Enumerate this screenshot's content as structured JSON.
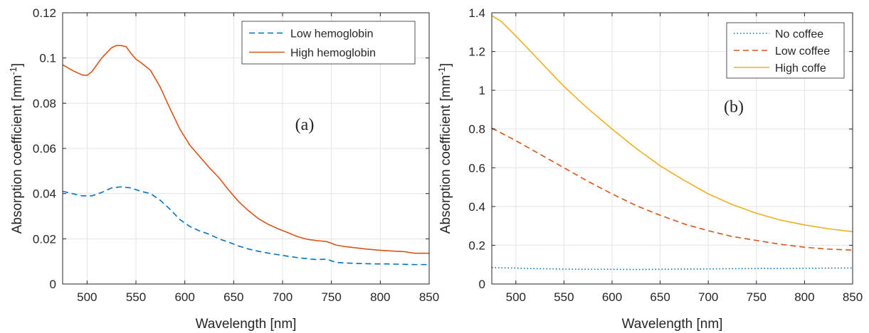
{
  "colors": {
    "blue": "#0072BD",
    "orange": "#D95319",
    "yellow": "#EDB120",
    "grid": "#e3e3e3",
    "axis": "#262626"
  },
  "chart_data": [
    {
      "type": "line",
      "panel_label": "(a)",
      "xlabel": "Wavelength [nm]",
      "ylabel": "Absorption coefficient [mm",
      "ylabel_sup": "-1",
      "ylabel_suffix": "]",
      "xlim": [
        475,
        850
      ],
      "ylim": [
        0,
        0.12
      ],
      "xticks": [
        500,
        550,
        600,
        650,
        700,
        750,
        800,
        850
      ],
      "yticks": [
        0,
        0.02,
        0.04,
        0.06,
        0.08,
        0.1,
        0.12
      ],
      "grid": true,
      "legend_position": "top-right",
      "series": [
        {
          "name": "Low hemoglobin",
          "color": "#0072BD",
          "style": "dashed",
          "x": [
            475,
            485,
            495,
            505,
            515,
            525,
            535,
            545,
            555,
            565,
            575,
            585,
            595,
            605,
            615,
            625,
            635,
            645,
            655,
            665,
            675,
            685,
            695,
            705,
            715,
            725,
            735,
            745,
            755,
            765,
            775,
            785,
            795,
            805,
            815,
            825,
            835,
            850
          ],
          "y": [
            0.041,
            0.04,
            0.039,
            0.039,
            0.0405,
            0.0425,
            0.043,
            0.0425,
            0.041,
            0.04,
            0.037,
            0.033,
            0.0285,
            0.0255,
            0.0235,
            0.022,
            0.02,
            0.0185,
            0.0168,
            0.0155,
            0.0145,
            0.0137,
            0.013,
            0.0123,
            0.0117,
            0.0112,
            0.0108,
            0.011,
            0.0095,
            0.0093,
            0.0091,
            0.009,
            0.0089,
            0.0089,
            0.0088,
            0.0087,
            0.0086,
            0.0086
          ]
        },
        {
          "name": "High hemoglobin",
          "color": "#D95319",
          "style": "solid",
          "x": [
            475,
            485,
            495,
            500,
            505,
            515,
            525,
            530,
            535,
            540,
            545,
            550,
            555,
            565,
            575,
            585,
            595,
            605,
            615,
            625,
            635,
            645,
            655,
            665,
            675,
            685,
            695,
            705,
            715,
            725,
            735,
            745,
            755,
            765,
            775,
            785,
            795,
            805,
            815,
            825,
            835,
            850
          ],
          "y": [
            0.097,
            0.0945,
            0.0925,
            0.0923,
            0.094,
            0.1,
            0.1045,
            0.1055,
            0.1055,
            0.105,
            0.102,
            0.0995,
            0.098,
            0.0945,
            0.087,
            0.0775,
            0.0685,
            0.0615,
            0.0565,
            0.0515,
            0.047,
            0.0415,
            0.0365,
            0.0325,
            0.029,
            0.0265,
            0.0245,
            0.0228,
            0.021,
            0.0198,
            0.0192,
            0.0188,
            0.0172,
            0.0165,
            0.016,
            0.0155,
            0.0151,
            0.0148,
            0.0145,
            0.0143,
            0.0136,
            0.0136
          ]
        }
      ]
    },
    {
      "type": "line",
      "panel_label": "(b)",
      "xlabel": "Wavelength [nm]",
      "ylabel": "Absorption coefficient [mm",
      "ylabel_sup": "-1",
      "ylabel_suffix": "]",
      "xlim": [
        475,
        850
      ],
      "ylim": [
        0,
        1.4
      ],
      "xticks": [
        500,
        550,
        600,
        650,
        700,
        750,
        800,
        850
      ],
      "yticks": [
        0,
        0.2,
        0.4,
        0.6,
        0.8,
        1,
        1.2,
        1.4
      ],
      "grid": true,
      "legend_position": "top-right",
      "series": [
        {
          "name": "No coffee",
          "color": "#0072BD",
          "style": "dotted",
          "x": [
            475,
            500,
            525,
            550,
            575,
            600,
            625,
            650,
            675,
            700,
            725,
            750,
            775,
            800,
            825,
            850
          ],
          "y": [
            0.085,
            0.082,
            0.079,
            0.077,
            0.076,
            0.076,
            0.075,
            0.076,
            0.077,
            0.078,
            0.079,
            0.08,
            0.08,
            0.081,
            0.082,
            0.083
          ]
        },
        {
          "name": "Low coffee",
          "color": "#D95319",
          "style": "dashed",
          "x": [
            475,
            500,
            525,
            550,
            575,
            600,
            625,
            650,
            675,
            700,
            725,
            750,
            775,
            800,
            825,
            850
          ],
          "y": [
            0.805,
            0.74,
            0.67,
            0.6,
            0.53,
            0.465,
            0.405,
            0.355,
            0.31,
            0.275,
            0.245,
            0.225,
            0.205,
            0.19,
            0.18,
            0.175
          ]
        },
        {
          "name": "High coffe",
          "color": "#EDB120",
          "style": "solid",
          "x": [
            475,
            485,
            500,
            525,
            550,
            575,
            600,
            625,
            650,
            675,
            700,
            725,
            750,
            775,
            800,
            825,
            850
          ],
          "y": [
            1.385,
            1.355,
            1.28,
            1.15,
            1.02,
            0.905,
            0.8,
            0.7,
            0.61,
            0.535,
            0.465,
            0.41,
            0.365,
            0.33,
            0.305,
            0.285,
            0.27
          ]
        }
      ]
    }
  ]
}
